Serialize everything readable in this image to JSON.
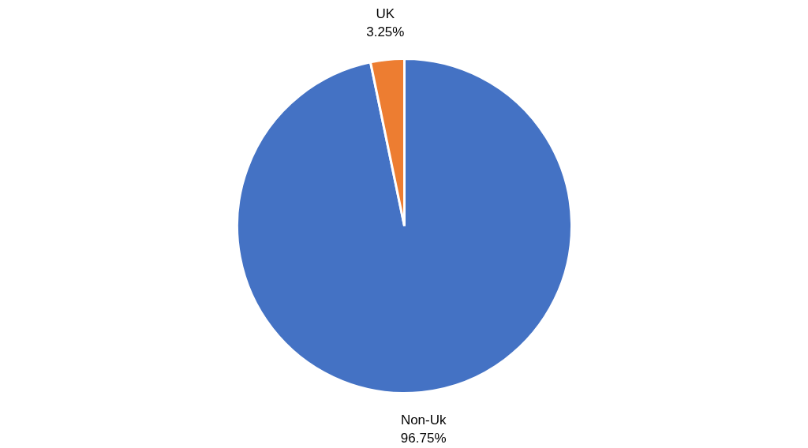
{
  "chart_data": {
    "type": "pie",
    "categories": [
      "Non-Uk",
      "UK"
    ],
    "values": [
      96.75,
      3.25
    ],
    "colors": [
      "#4472c4",
      "#ed7d31"
    ],
    "value_labels": [
      "96.75%",
      "3.25%"
    ]
  }
}
